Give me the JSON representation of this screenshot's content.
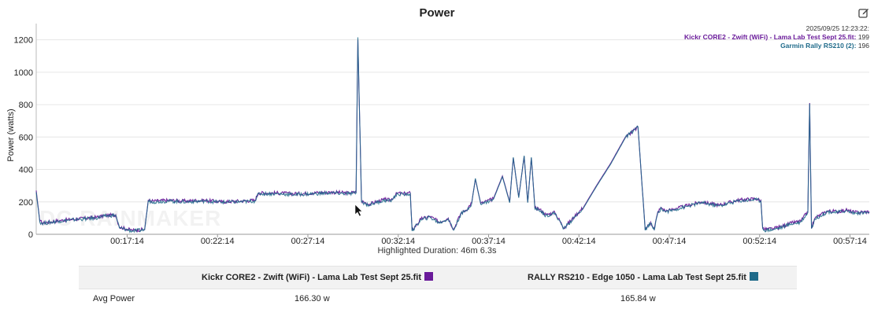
{
  "header": {
    "title": "Power",
    "edit_icon": "edit-icon"
  },
  "tooltip": {
    "timestamp": "2025/09/25 12:23:22:",
    "rows": [
      {
        "name": "Kickr CORE2 - Zwift (WiFi) - Lama Lab Test Sept 25.fit:",
        "value": "199",
        "color": "#6a1b9a"
      },
      {
        "name": "Garmin Rally RS210 (2):",
        "value": "196",
        "color": "#1f6b8a"
      }
    ]
  },
  "highlight_text": "Highlighted Duration: 46m 6.3s",
  "comparison": {
    "columns": [
      {
        "label": "Kickr CORE2 - Zwift (WiFi) - Lama Lab Test Sept 25.fit",
        "color": "#6a1b9a"
      },
      {
        "label": "RALLY RS210 - Edge 1050 - Lama Lab Test Sept 25.fit",
        "color": "#1f6b8a"
      }
    ],
    "rows": [
      {
        "label": "Avg Power",
        "values": [
          "166.30 w",
          "165.84 w"
        ]
      }
    ]
  },
  "chart_data": {
    "type": "line",
    "title": "Power",
    "ylabel": "Power (watts)",
    "xlabel": "",
    "ylim": [
      0,
      1300
    ],
    "xlim_minutes": [
      12.2,
      58.3
    ],
    "y_ticks": [
      0,
      200,
      400,
      600,
      800,
      1000,
      1200
    ],
    "x_tick_minutes": [
      17.233,
      22.233,
      27.233,
      32.233,
      37.233,
      42.233,
      47.233,
      52.233,
      57.233
    ],
    "x_tick_labels": [
      "00:17:14",
      "00:22:14",
      "00:27:14",
      "00:32:14",
      "00:37:14",
      "00:42:14",
      "00:47:14",
      "00:52:14",
      "00:57:14"
    ],
    "grid": "horizontal",
    "legend": "top-right",
    "colors": {
      "series1": "#6a1b9a",
      "series2": "#1f6b8a"
    },
    "series": [
      {
        "name": "Kickr CORE2 - Zwift (WiFi) - Lama Lab Test Sept 25.fit",
        "color": "#6a1b9a",
        "x_minutes": [
          12.2,
          12.4,
          12.6,
          13.5,
          14.5,
          15.5,
          16.0,
          16.6,
          16.8,
          17.5,
          18.2,
          18.4,
          18.7,
          19.5,
          20.5,
          21.5,
          22.5,
          23.5,
          24.3,
          24.5,
          25.5,
          26.5,
          27.5,
          28.5,
          29.5,
          29.9,
          30.0,
          30.2,
          30.6,
          31.0,
          31.5,
          31.8,
          32.2,
          32.5,
          32.9,
          33.0,
          33.5,
          34.0,
          34.5,
          35.0,
          35.3,
          35.7,
          36.0,
          36.3,
          36.5,
          36.8,
          37.5,
          38.0,
          38.4,
          38.6,
          38.9,
          39.2,
          39.4,
          39.6,
          39.8,
          40.0,
          40.4,
          40.9,
          41.4,
          42.0,
          42.5,
          43.2,
          44.0,
          44.8,
          45.5,
          45.9,
          46.2,
          46.3,
          46.4,
          46.6,
          46.8,
          47.0,
          47.3,
          47.6,
          48.0,
          49.0,
          50.0,
          51.0,
          52.0,
          52.3,
          52.4,
          52.5,
          53.0,
          53.5,
          54.0,
          54.5,
          54.9,
          55.0,
          55.1,
          55.3,
          55.6,
          56.0,
          56.5,
          57.0,
          57.5,
          58.3
        ],
        "values": [
          270,
          80,
          70,
          85,
          95,
          105,
          115,
          120,
          45,
          25,
          30,
          210,
          205,
          210,
          205,
          210,
          200,
          205,
          210,
          255,
          255,
          250,
          255,
          260,
          255,
          260,
          1200,
          205,
          185,
          200,
          215,
          210,
          255,
          250,
          255,
          25,
          95,
          110,
          75,
          100,
          30,
          130,
          150,
          195,
          340,
          190,
          220,
          360,
          200,
          470,
          230,
          480,
          200,
          470,
          160,
          160,
          120,
          135,
          40,
          110,
          170,
          300,
          440,
          600,
          660,
          30,
          75,
          50,
          30,
          140,
          165,
          145,
          150,
          160,
          170,
          200,
          180,
          210,
          220,
          210,
          40,
          30,
          35,
          50,
          70,
          80,
          140,
          810,
          40,
          100,
          120,
          145,
          140,
          150,
          135,
          140
        ]
      },
      {
        "name": "RALLY RS210 - Edge 1050 - Lama Lab Test Sept 25.fit",
        "color": "#1f6b8a",
        "x_minutes": [
          12.2,
          12.4,
          12.6,
          13.5,
          14.5,
          15.5,
          16.0,
          16.6,
          16.8,
          17.5,
          18.2,
          18.4,
          18.7,
          19.5,
          20.5,
          21.5,
          22.5,
          23.5,
          24.3,
          24.5,
          25.5,
          26.5,
          27.5,
          28.5,
          29.5,
          29.9,
          30.0,
          30.2,
          30.6,
          31.0,
          31.5,
          31.8,
          32.2,
          32.5,
          32.9,
          33.0,
          33.5,
          34.0,
          34.5,
          35.0,
          35.3,
          35.7,
          36.0,
          36.3,
          36.5,
          36.8,
          37.5,
          38.0,
          38.4,
          38.6,
          38.9,
          39.2,
          39.4,
          39.6,
          39.8,
          40.0,
          40.4,
          40.9,
          41.4,
          42.0,
          42.5,
          43.2,
          44.0,
          44.8,
          45.5,
          45.9,
          46.2,
          46.3,
          46.4,
          46.6,
          46.8,
          47.0,
          47.3,
          47.6,
          48.0,
          49.0,
          50.0,
          51.0,
          52.0,
          52.3,
          52.4,
          52.5,
          53.0,
          53.5,
          54.0,
          54.5,
          54.9,
          55.0,
          55.1,
          55.3,
          55.6,
          56.0,
          56.5,
          57.0,
          57.5,
          58.3
        ],
        "values": [
          260,
          75,
          68,
          82,
          92,
          100,
          112,
          118,
          40,
          20,
          28,
          205,
          200,
          205,
          200,
          205,
          198,
          200,
          205,
          250,
          250,
          245,
          250,
          255,
          250,
          255,
          1215,
          200,
          180,
          195,
          210,
          205,
          250,
          245,
          250,
          20,
          90,
          105,
          70,
          95,
          25,
          125,
          145,
          190,
          345,
          185,
          215,
          355,
          195,
          475,
          225,
          485,
          195,
          475,
          155,
          155,
          115,
          130,
          35,
          105,
          165,
          295,
          435,
          595,
          665,
          25,
          70,
          45,
          25,
          135,
          160,
          140,
          145,
          155,
          165,
          195,
          175,
          205,
          215,
          205,
          35,
          25,
          30,
          45,
          65,
          75,
          135,
          805,
          35,
          95,
          115,
          140,
          135,
          145,
          130,
          135
        ]
      }
    ]
  }
}
